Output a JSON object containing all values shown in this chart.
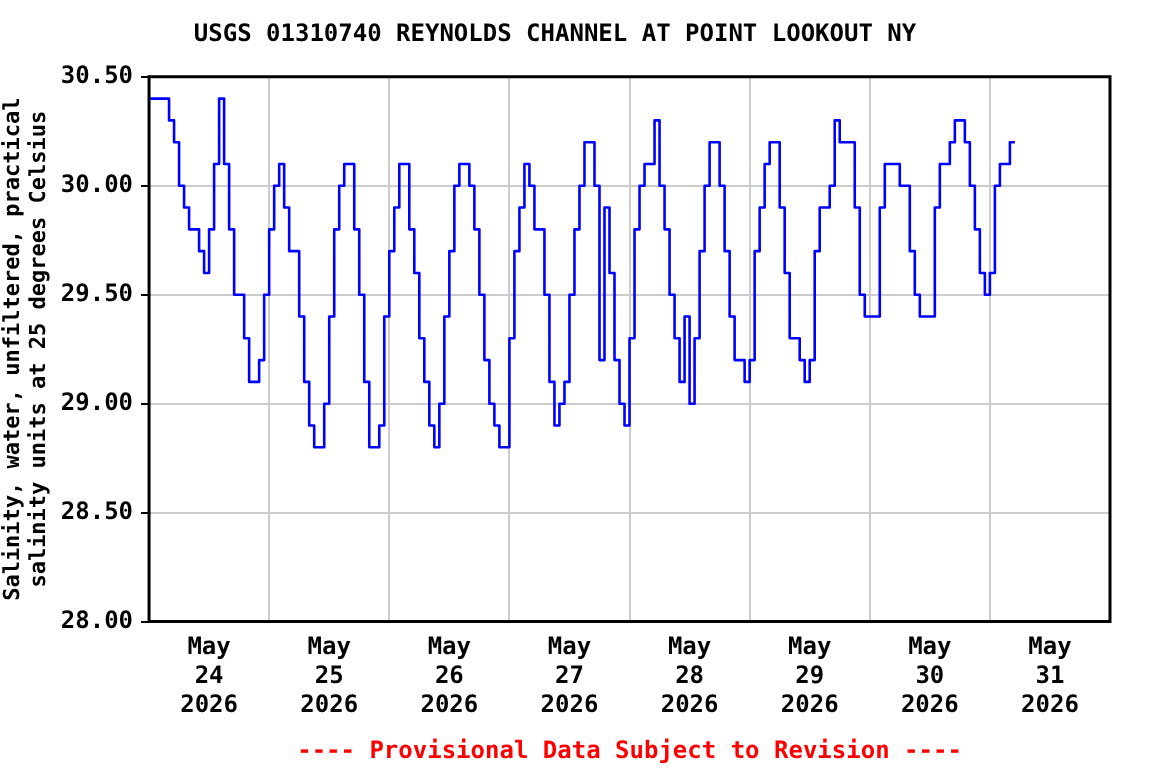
{
  "chart_data": {
    "type": "step",
    "title": "USGS 01310740 REYNOLDS CHANNEL AT POINT LOOKOUT NY",
    "ylabel": "Salinity, water, unfiltered, practical salinity units at 25 degrees Celsius",
    "annotations": [
      "---- Provisional Data Subject to Revision ----"
    ],
    "xlim": [
      "2026-05-24",
      "2026-06-01"
    ],
    "xticks": [
      {
        "value": "2026-05-24T12:00",
        "label": "May 24 2026"
      },
      {
        "value": "2026-05-25",
        "label": null
      },
      {
        "value": "2026-05-25T12:00",
        "label": "May 25 2026"
      },
      {
        "value": "2026-05-26",
        "label": null
      },
      {
        "value": "2026-05-26T12:00",
        "label": "May 26 2026"
      },
      {
        "value": "2026-05-27",
        "label": null
      },
      {
        "value": "2026-05-27T12:00",
        "label": "May 27 2026"
      },
      {
        "value": "2026-05-28",
        "label": null
      },
      {
        "value": "2026-05-28T12:00",
        "label": "May 28 2026"
      },
      {
        "value": "2026-05-29",
        "label": null
      },
      {
        "value": "2026-05-29T12:00",
        "label": "May 29 2026"
      },
      {
        "value": "2026-05-30",
        "label": null
      },
      {
        "value": "2026-05-30T12:00",
        "label": "May 30 2026"
      },
      {
        "value": "2026-05-31",
        "label": null
      },
      {
        "value": "2026-05-31T12:00",
        "label": "May 31 2026"
      }
    ],
    "ylim": [
      28,
      30.5
    ],
    "yticks": [
      {
        "value": 28,
        "label": "28.00"
      },
      {
        "value": 28.5,
        "label": "28.50"
      },
      {
        "value": 29,
        "label": "29.00"
      },
      {
        "value": 29.5,
        "label": "29.50"
      },
      {
        "value": 30,
        "label": "30.00"
      },
      {
        "value": 30.5,
        "label": "30.50"
      }
    ],
    "grid": true,
    "legend": false,
    "series": [
      {
        "color": "#0000ff",
        "x": [
          "2026-05-24T00:00",
          "2026-05-24T04:00",
          "2026-05-24T05:00",
          "2026-05-24T06:00",
          "2026-05-24T07:00",
          "2026-05-24T08:00",
          "2026-05-24T10:00",
          "2026-05-24T11:00",
          "2026-05-24T12:00",
          "2026-05-24T13:00",
          "2026-05-24T14:00",
          "2026-05-24T15:00",
          "2026-05-24T16:00",
          "2026-05-24T17:00",
          "2026-05-24T19:00",
          "2026-05-24T20:00",
          "2026-05-24T22:00",
          "2026-05-24T23:00",
          "2026-05-25T00:00",
          "2026-05-25T01:00",
          "2026-05-25T02:00",
          "2026-05-25T03:00",
          "2026-05-25T04:00",
          "2026-05-25T06:00",
          "2026-05-25T07:00",
          "2026-05-25T08:00",
          "2026-05-25T09:00",
          "2026-05-25T11:00",
          "2026-05-25T12:00",
          "2026-05-25T13:00",
          "2026-05-25T14:00",
          "2026-05-25T15:00",
          "2026-05-25T16:00",
          "2026-05-25T17:00",
          "2026-05-25T18:00",
          "2026-05-25T19:00",
          "2026-05-25T20:00",
          "2026-05-25T22:00",
          "2026-05-25T23:00",
          "2026-05-26T00:00",
          "2026-05-26T01:00",
          "2026-05-26T02:00",
          "2026-05-26T03:00",
          "2026-05-26T04:00",
          "2026-05-26T05:00",
          "2026-05-26T06:00",
          "2026-05-26T07:00",
          "2026-05-26T08:00",
          "2026-05-26T09:00",
          "2026-05-26T10:00",
          "2026-05-26T11:00",
          "2026-05-26T12:00",
          "2026-05-26T13:00",
          "2026-05-26T14:00",
          "2026-05-26T15:00",
          "2026-05-26T16:00",
          "2026-05-26T17:00",
          "2026-05-26T18:00",
          "2026-05-26T19:00",
          "2026-05-26T20:00",
          "2026-05-26T21:00",
          "2026-05-26T22:00",
          "2026-05-26T23:00",
          "2026-05-27T00:00",
          "2026-05-27T01:00",
          "2026-05-27T02:00",
          "2026-05-27T03:00",
          "2026-05-27T04:00",
          "2026-05-27T05:00",
          "2026-05-27T06:00",
          "2026-05-27T07:00",
          "2026-05-27T08:00",
          "2026-05-27T09:00",
          "2026-05-27T10:00",
          "2026-05-27T11:00",
          "2026-05-27T12:00",
          "2026-05-27T13:00",
          "2026-05-27T14:00",
          "2026-05-27T15:00",
          "2026-05-27T16:00",
          "2026-05-27T17:00",
          "2026-05-27T18:00",
          "2026-05-27T19:00",
          "2026-05-27T20:00",
          "2026-05-27T21:00",
          "2026-05-27T22:00",
          "2026-05-27T23:00",
          "2026-05-28T00:00",
          "2026-05-28T01:00",
          "2026-05-28T02:00",
          "2026-05-28T03:00",
          "2026-05-28T04:00",
          "2026-05-28T05:00",
          "2026-05-28T06:00",
          "2026-05-28T07:00",
          "2026-05-28T08:00",
          "2026-05-28T09:00",
          "2026-05-28T10:00",
          "2026-05-28T11:00",
          "2026-05-28T12:00",
          "2026-05-28T13:00",
          "2026-05-28T14:00",
          "2026-05-28T15:00",
          "2026-05-28T16:00",
          "2026-05-28T17:00",
          "2026-05-28T18:00",
          "2026-05-28T19:00",
          "2026-05-28T20:00",
          "2026-05-28T21:00",
          "2026-05-28T22:00",
          "2026-05-28T23:00",
          "2026-05-29T00:00",
          "2026-05-29T01:00",
          "2026-05-29T02:00",
          "2026-05-29T03:00",
          "2026-05-29T04:00",
          "2026-05-29T05:00",
          "2026-05-29T06:00",
          "2026-05-29T07:00",
          "2026-05-29T08:00",
          "2026-05-29T10:00",
          "2026-05-29T11:00",
          "2026-05-29T12:00",
          "2026-05-29T13:00",
          "2026-05-29T14:00",
          "2026-05-29T16:00",
          "2026-05-29T17:00",
          "2026-05-29T18:00",
          "2026-05-29T20:00",
          "2026-05-29T21:00",
          "2026-05-29T22:00",
          "2026-05-29T23:00",
          "2026-05-30T01:00",
          "2026-05-30T02:00",
          "2026-05-30T03:00",
          "2026-05-30T05:00",
          "2026-05-30T06:00",
          "2026-05-30T08:00",
          "2026-05-30T09:00",
          "2026-05-30T10:00",
          "2026-05-30T12:00",
          "2026-05-30T13:00",
          "2026-05-30T14:00",
          "2026-05-30T16:00",
          "2026-05-30T17:00",
          "2026-05-30T18:00",
          "2026-05-30T19:00",
          "2026-05-30T20:00",
          "2026-05-30T21:00",
          "2026-05-30T22:00",
          "2026-05-30T23:00",
          "2026-05-31T00:00",
          "2026-05-31T01:00",
          "2026-05-31T02:00",
          "2026-05-31T03:00",
          "2026-05-31T04:00",
          "2026-05-31T05:00"
        ],
        "values": [
          30.4,
          30.3,
          30.2,
          30.0,
          29.9,
          29.8,
          29.7,
          29.6,
          29.8,
          30.1,
          30.4,
          30.1,
          29.8,
          29.5,
          29.3,
          29.1,
          29.2,
          29.5,
          29.8,
          30.0,
          30.1,
          29.9,
          29.7,
          29.4,
          29.1,
          28.9,
          28.8,
          29.0,
          29.4,
          29.8,
          30.0,
          30.1,
          30.1,
          29.8,
          29.5,
          29.1,
          28.8,
          28.9,
          29.4,
          29.7,
          29.9,
          30.1,
          30.1,
          29.8,
          29.6,
          29.3,
          29.1,
          28.9,
          28.8,
          29.0,
          29.4,
          29.7,
          30.0,
          30.1,
          30.1,
          30.0,
          29.8,
          29.5,
          29.2,
          29.0,
          28.9,
          28.8,
          28.8,
          29.3,
          29.7,
          29.9,
          30.1,
          30.0,
          29.8,
          29.8,
          29.5,
          29.1,
          28.9,
          29.0,
          29.1,
          29.5,
          29.8,
          30.0,
          30.2,
          30.2,
          30.0,
          29.2,
          29.9,
          29.6,
          29.2,
          29.0,
          28.9,
          29.3,
          29.8,
          30.0,
          30.1,
          30.1,
          30.3,
          30.0,
          29.8,
          29.5,
          29.3,
          29.1,
          29.4,
          29.0,
          29.3,
          29.7,
          30.0,
          30.2,
          30.2,
          30.0,
          29.7,
          29.4,
          29.2,
          29.2,
          29.1,
          29.2,
          29.7,
          29.9,
          30.1,
          30.2,
          30.2,
          29.9,
          29.6,
          29.3,
          29.2,
          29.1,
          29.2,
          29.7,
          29.9,
          30.0,
          30.3,
          30.2,
          30.2,
          29.9,
          29.5,
          29.4,
          29.4,
          29.9,
          30.1,
          30.1,
          30.0,
          29.7,
          29.5,
          29.4,
          29.4,
          29.9,
          30.1,
          30.2,
          30.3,
          30.3,
          30.2,
          30.0,
          29.8,
          29.6,
          29.5,
          29.6,
          30.0,
          30.1,
          30.1,
          30.2,
          30.2
        ]
      }
    ]
  }
}
